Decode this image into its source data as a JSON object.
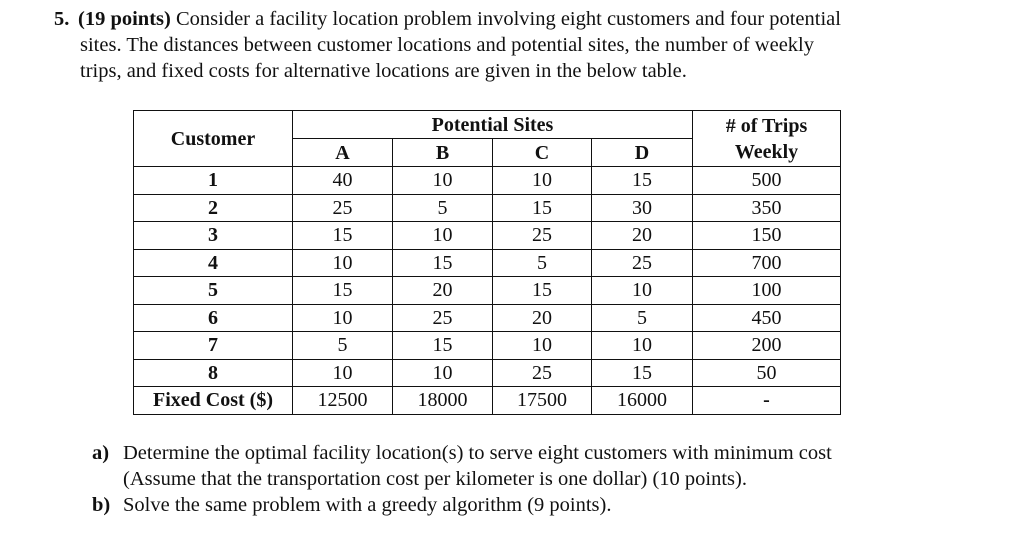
{
  "question": {
    "number": "5.",
    "points": "(19 points)",
    "line1": " Consider a facility location problem involving eight customers and four potential",
    "line2": "sites. The distances between customer locations and potential sites, the number of weekly",
    "line3": "trips, and fixed costs for alternative locations are given in the below table."
  },
  "table": {
    "customer_header": "Customer",
    "sites_header": "Potential Sites",
    "trips_header_line1": "# of Trips",
    "trips_header_line2": "Weekly",
    "sites": [
      "A",
      "B",
      "C",
      "D"
    ],
    "rows": [
      {
        "customer": "1",
        "a": "40",
        "b": "10",
        "c": "10",
        "d": "15",
        "trips": "500"
      },
      {
        "customer": "2",
        "a": "25",
        "b": "5",
        "c": "15",
        "d": "30",
        "trips": "350"
      },
      {
        "customer": "3",
        "a": "15",
        "b": "10",
        "c": "25",
        "d": "20",
        "trips": "150"
      },
      {
        "customer": "4",
        "a": "10",
        "b": "15",
        "c": "5",
        "d": "25",
        "trips": "700"
      },
      {
        "customer": "5",
        "a": "15",
        "b": "20",
        "c": "15",
        "d": "10",
        "trips": "100"
      },
      {
        "customer": "6",
        "a": "10",
        "b": "25",
        "c": "20",
        "d": "5",
        "trips": "450"
      },
      {
        "customer": "7",
        "a": "5",
        "b": "15",
        "c": "10",
        "d": "10",
        "trips": "200"
      },
      {
        "customer": "8",
        "a": "10",
        "b": "10",
        "c": "25",
        "d": "15",
        "trips": "50"
      }
    ],
    "fixed_cost_label": "Fixed Cost ($)",
    "fixed_costs": {
      "a": "12500",
      "b": "18000",
      "c": "17500",
      "d": "16000",
      "trips": "-"
    }
  },
  "parts": [
    {
      "label": "a)",
      "line1": "Determine the optimal facility location(s) to serve eight customers with minimum cost",
      "line2": "(Assume that the transportation cost per kilometer is one dollar) (10 points)."
    },
    {
      "label": "b)",
      "line1": "Solve the same problem with a greedy algorithm (9 points).",
      "line2": ""
    }
  ]
}
